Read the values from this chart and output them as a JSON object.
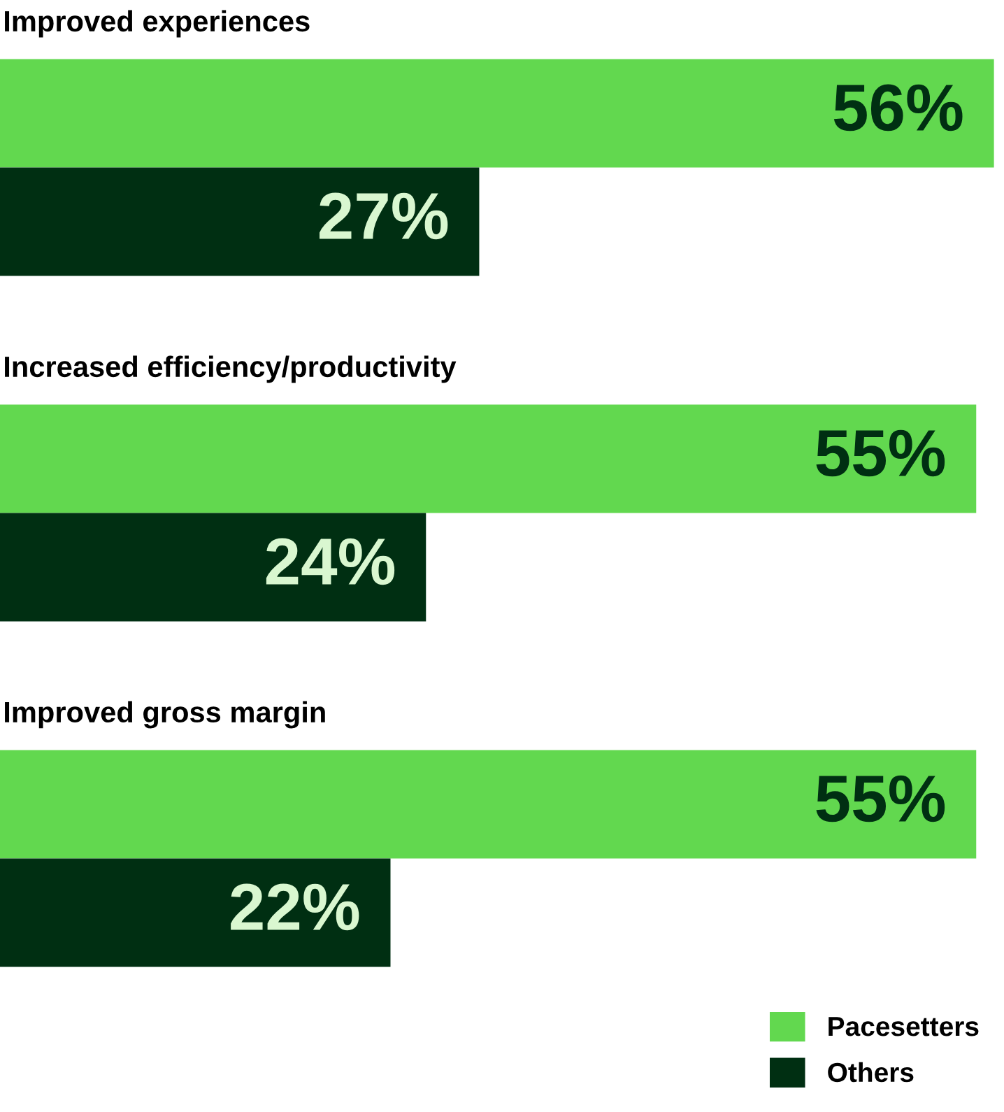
{
  "chart_data": {
    "type": "bar",
    "orientation": "horizontal",
    "categories": [
      "Improved experiences",
      "Increased efficiency/productivity",
      "Improved gross margin"
    ],
    "series": [
      {
        "name": "Pacesetters",
        "color": "#62d84f",
        "values": [
          56,
          55,
          55
        ],
        "value_labels": [
          "56%",
          "55%",
          "55%"
        ]
      },
      {
        "name": "Others",
        "color": "#002f12",
        "values": [
          27,
          24,
          22
        ],
        "value_labels": [
          "27%",
          "24%",
          "22%"
        ]
      }
    ],
    "legend": "bottom right"
  }
}
